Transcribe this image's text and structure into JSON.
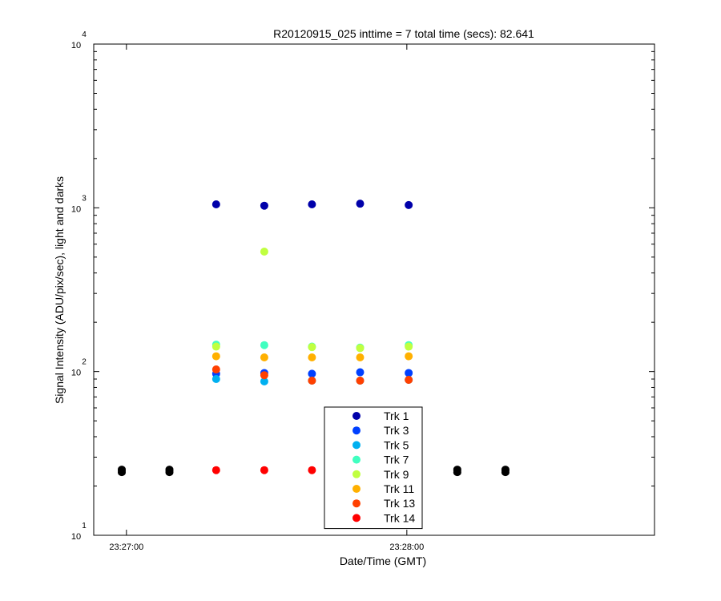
{
  "chart_data": {
    "type": "scatter",
    "title": "R20120915_025 inttime = 7 total time (secs): 82.641",
    "xlabel": "Date/Time (GMT)",
    "ylabel": "Signal Intensity (ADU/pix/sec), light and darks",
    "x_unit": "seconds after 23:26:00 GMT",
    "xlim": [
      53,
      173
    ],
    "ylim": [
      10,
      10000
    ],
    "yscale": "log",
    "x_ticks": [
      {
        "value": 60,
        "label": "23:27:00"
      },
      {
        "value": 120,
        "label": "23:28:00"
      }
    ],
    "y_ticks": [
      {
        "value": 10,
        "base": "10",
        "exp": "1"
      },
      {
        "value": 100,
        "base": "10",
        "exp": "2"
      },
      {
        "value": 1000,
        "base": "10",
        "exp": "3"
      },
      {
        "value": 10000,
        "base": "10",
        "exp": "4"
      }
    ],
    "grid": false,
    "legend_position": "bottom-center",
    "series": [
      {
        "name": "Trk 1",
        "color": "#0000aa",
        "x": [
          79.2,
          89.5,
          99.7,
          110,
          120.4
        ],
        "y": [
          1050,
          1030,
          1050,
          1060,
          1040
        ]
      },
      {
        "name": "Trk 3",
        "color": "#0040ff",
        "x": [
          79.2,
          89.5,
          99.7,
          110,
          120.4
        ],
        "y": [
          97,
          98,
          97,
          99,
          98
        ]
      },
      {
        "name": "Trk 5",
        "color": "#00b0f0",
        "x": [
          79.2,
          89.5,
          99.7,
          110,
          120.4
        ],
        "y": [
          90,
          87,
          88,
          88,
          89
        ]
      },
      {
        "name": "Trk 7",
        "color": "#40ffc0",
        "x": [
          79.2,
          89.5,
          99.7,
          110,
          120.4
        ],
        "y": [
          146,
          145,
          142,
          140,
          145
        ]
      },
      {
        "name": "Trk 9",
        "color": "#c0ff40",
        "x": [
          79.2,
          89.5,
          99.7,
          110,
          120.4
        ],
        "y": [
          142,
          540,
          141,
          139,
          142
        ]
      },
      {
        "name": "Trk 11",
        "color": "#ffb000",
        "x": [
          79.2,
          89.5,
          99.7,
          110,
          120.4
        ],
        "y": [
          124,
          122,
          122,
          122,
          124
        ]
      },
      {
        "name": "Trk 13",
        "color": "#ff4000",
        "x": [
          79.2,
          89.5,
          99.7,
          110,
          120.4
        ],
        "y": [
          103,
          95,
          88,
          88,
          89
        ]
      },
      {
        "name": "Trk 14",
        "color": "#ff0000",
        "x": [
          79.2,
          89.5,
          99.7,
          110,
          120.4
        ],
        "y": [
          25,
          25,
          25,
          25,
          25
        ]
      }
    ],
    "darks": {
      "color": "#000000",
      "x": [
        59,
        59,
        59,
        69.2,
        69.2,
        69.2,
        130.8,
        130.8,
        130.8,
        141.1,
        141.1,
        141.1
      ],
      "y": [
        24.2,
        24.8,
        25.3,
        24.2,
        24.8,
        25.3,
        24.2,
        24.8,
        25.3,
        24.2,
        24.8,
        25.3
      ]
    }
  }
}
